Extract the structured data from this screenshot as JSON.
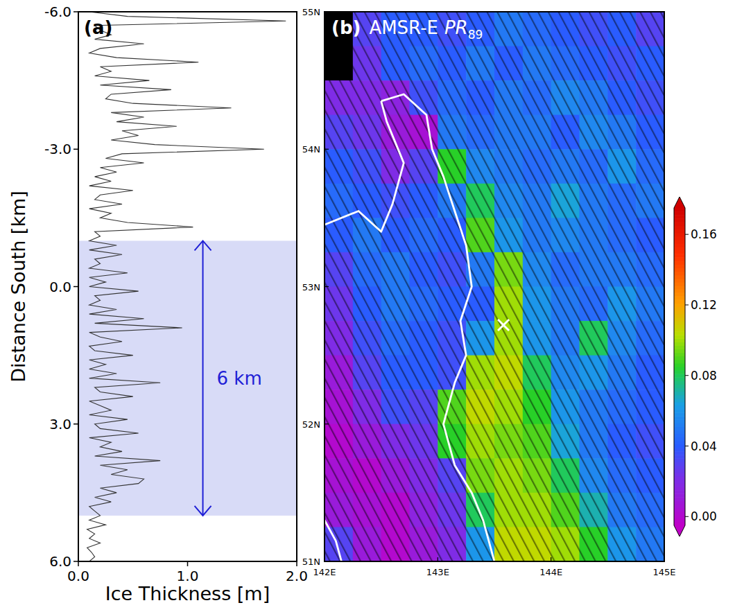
{
  "chart_data": [
    {
      "type": "line",
      "panel_label": "(a)",
      "xlabel": "Ice Thickness [m]",
      "ylabel": "Distance South [km]",
      "color": "#333333",
      "xlim": [
        0,
        2
      ],
      "ylim": [
        -6,
        6
      ],
      "xticks": [
        {
          "value": 0,
          "label": "0.0"
        },
        {
          "value": 1,
          "label": "1.0"
        },
        {
          "value": 2,
          "label": "2.0"
        }
      ],
      "yticks": [
        {
          "value": -6,
          "label": "-6.0"
        },
        {
          "value": -3,
          "label": "-3.0"
        },
        {
          "value": 0,
          "label": "0.0"
        },
        {
          "value": 3,
          "label": "3.0"
        },
        {
          "value": 6,
          "label": "6.0"
        }
      ],
      "band": [
        -1,
        5
      ],
      "band_label": "6 km",
      "y": [
        -6.0,
        -5.9,
        -5.8,
        -5.7,
        -5.6,
        -5.5,
        -5.4,
        -5.3,
        -5.2,
        -5.1,
        -5.0,
        -4.9,
        -4.8,
        -4.7,
        -4.6,
        -4.5,
        -4.4,
        -4.3,
        -4.2,
        -4.1,
        -4.0,
        -3.9,
        -3.8,
        -3.7,
        -3.6,
        -3.5,
        -3.4,
        -3.3,
        -3.2,
        -3.1,
        -3.0,
        -2.9,
        -2.8,
        -2.7,
        -2.6,
        -2.5,
        -2.4,
        -2.3,
        -2.2,
        -2.1,
        -2.0,
        -1.9,
        -1.8,
        -1.7,
        -1.6,
        -1.5,
        -1.4,
        -1.3,
        -1.2,
        -1.1,
        -1.0,
        -0.9,
        -0.8,
        -0.7,
        -0.6,
        -0.5,
        -0.4,
        -0.3,
        -0.2,
        -0.1,
        0.0,
        0.1,
        0.2,
        0.3,
        0.4,
        0.5,
        0.6,
        0.7,
        0.8,
        0.9,
        1.0,
        1.1,
        1.2,
        1.3,
        1.4,
        1.5,
        1.6,
        1.7,
        1.8,
        1.9,
        2.0,
        2.1,
        2.2,
        2.3,
        2.4,
        2.5,
        2.6,
        2.7,
        2.8,
        2.9,
        3.0,
        3.1,
        3.2,
        3.3,
        3.4,
        3.5,
        3.6,
        3.7,
        3.8,
        3.9,
        4.0,
        4.1,
        4.2,
        4.3,
        4.4,
        4.5,
        4.6,
        4.7,
        4.8,
        4.9,
        5.0,
        5.1,
        5.2,
        5.3,
        5.4,
        5.5,
        5.6,
        5.7,
        5.8,
        5.9,
        6.0
      ],
      "values": [
        0.1,
        0.45,
        1.9,
        0.15,
        0.2,
        0.3,
        0.15,
        0.6,
        0.2,
        0.1,
        0.35,
        1.1,
        0.2,
        0.3,
        0.15,
        0.65,
        0.2,
        0.85,
        0.3,
        0.25,
        0.5,
        1.4,
        0.3,
        0.6,
        0.35,
        0.9,
        0.4,
        0.55,
        0.3,
        0.7,
        1.7,
        0.4,
        0.25,
        0.6,
        0.2,
        0.35,
        0.15,
        0.3,
        0.1,
        0.5,
        0.2,
        0.15,
        0.4,
        0.1,
        0.3,
        0.2,
        0.45,
        1.05,
        0.15,
        0.2,
        0.1,
        0.35,
        0.1,
        0.4,
        0.15,
        0.2,
        0.1,
        0.45,
        0.1,
        0.25,
        0.1,
        0.55,
        0.15,
        0.2,
        0.1,
        0.35,
        0.1,
        0.6,
        0.15,
        0.95,
        0.1,
        0.2,
        0.4,
        0.1,
        0.15,
        0.5,
        0.1,
        0.25,
        0.1,
        0.35,
        0.1,
        0.75,
        0.15,
        0.2,
        0.5,
        0.1,
        0.2,
        0.3,
        0.1,
        0.45,
        0.15,
        0.2,
        0.55,
        0.1,
        0.3,
        0.2,
        0.4,
        0.15,
        0.75,
        0.2,
        0.45,
        0.3,
        0.6,
        0.55,
        0.2,
        0.35,
        0.15,
        0.3,
        0.1,
        0.15,
        0.2,
        0.1,
        0.25,
        0.08,
        0.15,
        0.1,
        0.2,
        0.08,
        0.12,
        0.15,
        0.1
      ]
    },
    {
      "type": "heatmap",
      "panel_label": "(b)",
      "title": "AMSR-E",
      "variable": "PR",
      "variable_subscript": "89",
      "xlim": [
        142,
        145
      ],
      "ylim": [
        51,
        55
      ],
      "xticks": [
        {
          "value": 142,
          "label": "142E"
        },
        {
          "value": 143,
          "label": "143E"
        },
        {
          "value": 144,
          "label": "144E"
        },
        {
          "value": 145,
          "label": "145E"
        }
      ],
      "yticks": [
        {
          "value": 51,
          "label": "51N"
        },
        {
          "value": 52,
          "label": "52N"
        },
        {
          "value": 53,
          "label": "53N"
        },
        {
          "value": 54,
          "label": "54N"
        },
        {
          "value": 55,
          "label": "55N"
        }
      ],
      "x": [
        142.125,
        142.375,
        142.625,
        142.875,
        143.125,
        143.375,
        143.625,
        143.875,
        144.125,
        144.375,
        144.625,
        144.875
      ],
      "y": [
        54.875,
        54.625,
        54.375,
        54.125,
        53.875,
        53.625,
        53.375,
        53.125,
        52.875,
        52.625,
        52.375,
        52.125,
        51.875,
        51.625,
        51.375,
        51.125
      ],
      "values": [
        [
          null,
          0.03,
          0.04,
          0.04,
          0.035,
          0.04,
          0.05,
          0.045,
          0.04,
          0.035,
          0.04,
          0.03
        ],
        [
          null,
          0.025,
          0.04,
          0.045,
          0.04,
          0.05,
          0.04,
          0.05,
          0.045,
          0.04,
          0.035,
          0.04
        ],
        [
          0.02,
          0.02,
          0.015,
          0.035,
          0.045,
          0.04,
          0.05,
          0.045,
          0.055,
          0.05,
          0.04,
          0.035
        ],
        [
          0.03,
          0.025,
          0.01,
          0.005,
          0.05,
          0.045,
          0.05,
          0.05,
          0.04,
          0.055,
          0.05,
          0.04
        ],
        [
          0.04,
          0.035,
          0.02,
          0.03,
          0.085,
          0.055,
          0.05,
          0.045,
          0.05,
          0.045,
          0.06,
          0.045
        ],
        [
          0.045,
          0.04,
          0.035,
          0.04,
          0.05,
          0.08,
          0.055,
          0.05,
          0.065,
          0.05,
          0.045,
          0.05
        ],
        [
          0.04,
          0.05,
          0.04,
          0.045,
          0.04,
          0.09,
          0.06,
          0.05,
          0.055,
          0.05,
          0.045,
          0.04
        ],
        [
          0.03,
          0.045,
          0.05,
          0.04,
          0.035,
          0.05,
          0.095,
          0.055,
          0.045,
          0.05,
          0.05,
          0.045
        ],
        [
          0.025,
          0.04,
          0.05,
          0.045,
          0.04,
          0.04,
          0.1,
          0.06,
          0.05,
          0.045,
          0.06,
          0.05
        ],
        [
          0.02,
          0.035,
          0.045,
          0.04,
          0.035,
          0.06,
          0.1,
          0.06,
          0.05,
          0.08,
          0.055,
          0.045
        ],
        [
          0.01,
          0.03,
          0.04,
          0.04,
          0.035,
          0.1,
          0.105,
          0.08,
          0.055,
          0.06,
          0.05,
          0.04
        ],
        [
          0.005,
          0.02,
          0.035,
          0.03,
          0.09,
          0.105,
          0.1,
          0.085,
          0.06,
          0.05,
          0.045,
          0.04
        ],
        [
          0.0,
          0.01,
          0.02,
          0.025,
          0.085,
          0.1,
          0.095,
          0.09,
          0.065,
          0.05,
          0.04,
          0.035
        ],
        [
          0.005,
          0.0,
          0.01,
          0.02,
          0.03,
          0.095,
          0.1,
          0.095,
          0.08,
          0.055,
          0.045,
          0.04
        ],
        [
          0.01,
          0.005,
          0.0,
          0.015,
          0.025,
          0.08,
          0.1,
          0.1,
          0.09,
          0.07,
          0.05,
          0.045
        ],
        [
          0.03,
          0.01,
          0.0,
          0.01,
          0.02,
          0.06,
          0.105,
          0.105,
          0.1,
          0.085,
          0.06,
          0.05
        ]
      ],
      "colorbar": {
        "range": [
          -0.005,
          0.175
        ],
        "ticks": [
          {
            "value": 0,
            "label": "0.00"
          },
          {
            "value": 0.04,
            "label": "0.04"
          },
          {
            "value": 0.08,
            "label": "0.08"
          },
          {
            "value": 0.12,
            "label": "0.12"
          },
          {
            "value": 0.16,
            "label": "0.16"
          }
        ]
      },
      "coastlines": [
        {
          "lon": [
            142.5,
            142.7,
            142.9,
            142.95,
            143.05,
            143.15,
            143.25,
            143.3,
            143.2,
            143.25,
            143.15,
            143.05,
            143.15,
            143.3,
            143.4,
            143.5
          ],
          "lat": [
            54.35,
            54.4,
            54.25,
            54.0,
            53.8,
            53.55,
            53.3,
            53.0,
            52.75,
            52.5,
            52.3,
            52.0,
            51.7,
            51.5,
            51.3,
            51.0
          ]
        },
        {
          "lon": [
            142.0,
            142.3,
            142.5,
            142.6,
            142.7,
            142.55,
            142.5
          ],
          "lat": [
            53.45,
            53.55,
            53.4,
            53.6,
            53.9,
            54.2,
            54.35
          ]
        },
        {
          "lon": [
            142.0,
            142.1,
            142.15
          ],
          "lat": [
            51.3,
            51.15,
            51.0
          ]
        }
      ],
      "marker_point": {
        "lon": 143.58,
        "lat": 52.72
      }
    }
  ]
}
